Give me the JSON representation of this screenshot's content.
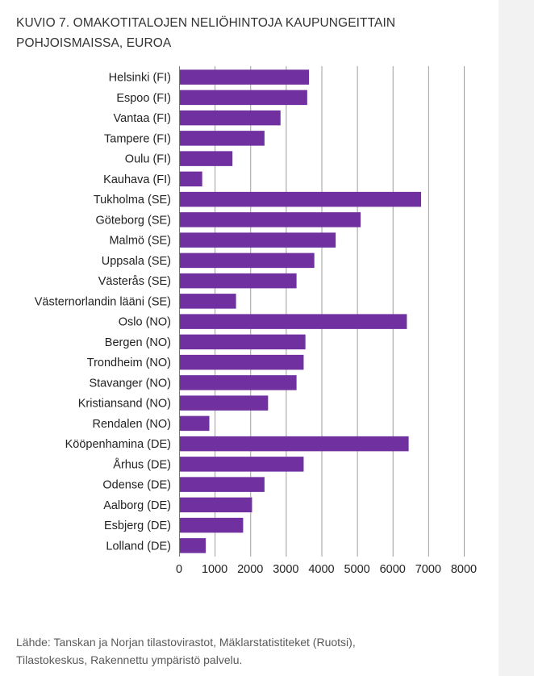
{
  "title_lines": [
    "KUVIO 7. OMAKOTITALOJEN NELIÖHINTOJA KAUPUNGEITTAIN",
    "POHJOISMAISSA, EUROA"
  ],
  "source_lines": [
    "Lähde: Tanskan ja Norjan tilastovirastot, Mäklarstatistiteket (Ruotsi),",
    "Tilastokeskus, Rakennettu ympäristö palvelu."
  ],
  "colors": {
    "bar": "#7030a0",
    "grid": "#9e9e9e",
    "strip": "#f2f2f2"
  },
  "chart_data": {
    "type": "bar",
    "orientation": "horizontal",
    "title": "KUVIO 7. OMAKOTITALOJEN NELIÖHINTOJA KAUPUNGEITTAIN POHJOISMAISSA, EUROA",
    "xlabel": "",
    "ylabel": "",
    "xlim": [
      0,
      8000
    ],
    "xticks": [
      0,
      1000,
      2000,
      3000,
      4000,
      5000,
      6000,
      7000,
      8000
    ],
    "grid": true,
    "legend": "none",
    "categories": [
      "Helsinki (FI)",
      "Espoo (FI)",
      "Vantaa (FI)",
      "Tampere (FI)",
      "Oulu (FI)",
      "Kauhava (FI)",
      "Tukholma (SE)",
      "Göteborg (SE)",
      "Malmö (SE)",
      "Uppsala (SE)",
      "Västerås (SE)",
      "Västernorlandin lääni (SE)",
      "Oslo (NO)",
      "Bergen (NO)",
      "Trondheim (NO)",
      "Stavanger (NO)",
      "Kristiansand (NO)",
      "Rendalen (NO)",
      "Kööpenhamina (DE)",
      "Århus (DE)",
      "Odense (DE)",
      "Aalborg (DE)",
      "Esbjerg (DE)",
      "Lolland (DE)"
    ],
    "values": [
      3650,
      3600,
      2850,
      2400,
      1500,
      650,
      6800,
      5100,
      4400,
      3800,
      3300,
      1600,
      6400,
      3550,
      3500,
      3300,
      2500,
      850,
      6450,
      3500,
      2400,
      2050,
      1800,
      750
    ]
  }
}
